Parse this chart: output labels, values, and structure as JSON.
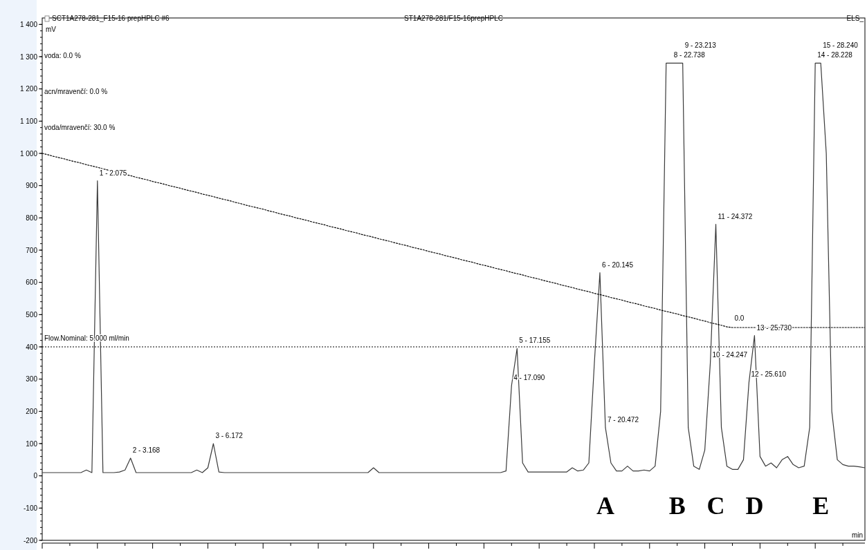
{
  "chart_data": {
    "type": "line",
    "title": "SCT1A278-281_F15-16 prepHPLC #6",
    "subtitle": "ST1A278-281/F15-16prepHPLC",
    "xlabel": "min",
    "ylabel": "mV",
    "categories": [
      null,
      null,
      null,
      null,
      null,
      null,
      null,
      null,
      null,
      null,
      null,
      null,
      null,
      null,
      null,
      null,
      null,
      null,
      null,
      null,
      null,
      null,
      null,
      null,
      null,
      null,
      null,
      null,
      null,
      null,
      null,
      null,
      null,
      null,
      null,
      null,
      null,
      null,
      null,
      null,
      null,
      null,
      null,
      null,
      null,
      null,
      null,
      null,
      null,
      null,
      null,
      null,
      null,
      null,
      null,
      null,
      null,
      null,
      null,
      null,
      null,
      null,
      null,
      null,
      null,
      null,
      null,
      null,
      null,
      null,
      null,
      null,
      null,
      null,
      null,
      null,
      null,
      null,
      null,
      null,
      null,
      null,
      null,
      null,
      null,
      null,
      null,
      null,
      null,
      null,
      null,
      null,
      null,
      null,
      null,
      null,
      null,
      null,
      null,
      null,
      null,
      null,
      "A",
      null,
      null,
      null,
      null,
      null,
      null,
      null,
      null,
      null,
      null,
      null,
      null,
      "B",
      null,
      null,
      null,
      null,
      null,
      null,
      "C",
      null,
      null,
      null,
      null,
      null,
      null,
      "D",
      null,
      null,
      null,
      null,
      null,
      null,
      null,
      null,
      null,
      null,
      null,
      "E",
      null,
      null,
      null,
      null,
      null,
      null,
      null,
      null
    ],
    "ylim": [
      -200,
      1420
    ],
    "yticks": [
      {
        "value": -200,
        "label": "-200"
      },
      {
        "value": -100,
        "label": "-100"
      },
      0,
      100,
      200,
      300,
      400,
      500,
      600,
      700,
      800,
      900,
      {
        "value": 1000,
        "label": "1 000"
      },
      {
        "value": 1100,
        "label": "1 100"
      },
      {
        "value": 1200,
        "label": "1 200"
      },
      {
        "value": 1300,
        "label": "1 300"
      },
      {
        "value": 1400,
        "label": "1 400"
      }
    ],
    "grid": false,
    "legend": false,
    "series": [
      {
        "color": "#3a3a3a",
        "line_style": "solid",
        "values": [
          10,
          10,
          10,
          10,
          10,
          10,
          10,
          10,
          18,
          10,
          915,
          10,
          10,
          10,
          12,
          18,
          55,
          10,
          10,
          10,
          10,
          10,
          10,
          10,
          10,
          10,
          10,
          10,
          18,
          10,
          25,
          100,
          12,
          10,
          10,
          10,
          10,
          10,
          10,
          10,
          10,
          10,
          10,
          10,
          10,
          10,
          10,
          10,
          10,
          10,
          10,
          10,
          10,
          10,
          10,
          10,
          10,
          10,
          10,
          10,
          25,
          10,
          10,
          10,
          10,
          10,
          10,
          10,
          10,
          10,
          10,
          10,
          10,
          10,
          10,
          10,
          10,
          10,
          10,
          10,
          10,
          10,
          10,
          10,
          15,
          280,
          395,
          40,
          12,
          12,
          12,
          12,
          12,
          12,
          12,
          12,
          25,
          15,
          18,
          40,
          350,
          630,
          150,
          40,
          15,
          15,
          30,
          15,
          15,
          18,
          15,
          30,
          200,
          1280,
          1280,
          1280,
          1280,
          150,
          30,
          20,
          80,
          350,
          780,
          150,
          30,
          20,
          20,
          50,
          290,
          435,
          60,
          30,
          40,
          25,
          50,
          60,
          35,
          25,
          30,
          150,
          1280,
          1280,
          1000,
          200,
          50,
          35,
          30,
          30,
          28,
          25
        ]
      },
      {
        "color": "#000000",
        "line_style": "dotted",
        "values": [
          1000,
          996,
          991,
          987,
          983,
          978,
          974,
          970,
          965,
          961,
          957,
          952,
          948,
          944,
          939,
          935,
          931,
          926,
          922,
          918,
          913,
          909,
          905,
          900,
          896,
          892,
          887,
          883,
          879,
          874,
          870,
          866,
          861,
          857,
          853,
          848,
          844,
          839,
          835,
          831,
          827,
          822,
          818,
          813,
          809,
          805,
          800,
          796,
          792,
          787,
          783,
          779,
          774,
          770,
          766,
          761,
          757,
          753,
          748,
          744,
          740,
          735,
          731,
          727,
          722,
          718,
          714,
          709,
          705,
          701,
          696,
          692,
          688,
          683,
          679,
          675,
          670,
          666,
          662,
          657,
          653,
          649,
          644,
          640,
          636,
          631,
          627,
          623,
          618,
          614,
          610,
          605,
          601,
          597,
          592,
          588,
          584,
          579,
          575,
          571,
          566,
          562,
          558,
          553,
          549,
          545,
          540,
          536,
          532,
          527,
          523,
          519,
          514,
          510,
          506,
          502,
          497,
          493,
          489,
          484,
          480,
          475,
          471,
          467,
          462,
          460,
          460,
          460,
          460,
          460,
          460,
          460,
          460,
          460,
          460,
          460,
          460,
          460,
          460,
          460,
          460,
          460,
          460,
          460,
          460,
          460,
          460,
          460,
          460,
          460
        ]
      }
    ],
    "ref_lines": [
      {
        "axis": "y",
        "value": 400,
        "color": "#000000",
        "line_style": "dotted"
      }
    ],
    "annotations": [
      "ELS_",
      "voda: 0.0 %",
      "acn/mravenčí: 0.0 %",
      "voda/mravenčí: 30.0 %",
      {
        "text": "Flow.Nominal: 5.000 ml/min",
        "y": 400
      },
      "1 - 2.075",
      "2 - 3.168",
      "3 - 6.172",
      "4 - 17.090",
      "5 - 17.155",
      "6 - 20.145",
      "7 - 20.472",
      "8 - 22.738",
      "9 - 23.213",
      "10 - 24.247",
      "11 - 24.372",
      "12 - 25.610",
      "13 - 25.730",
      "14 - 28.228",
      "15 - 28.240",
      {
        "text": "0.0",
        "y": 460
      }
    ]
  }
}
